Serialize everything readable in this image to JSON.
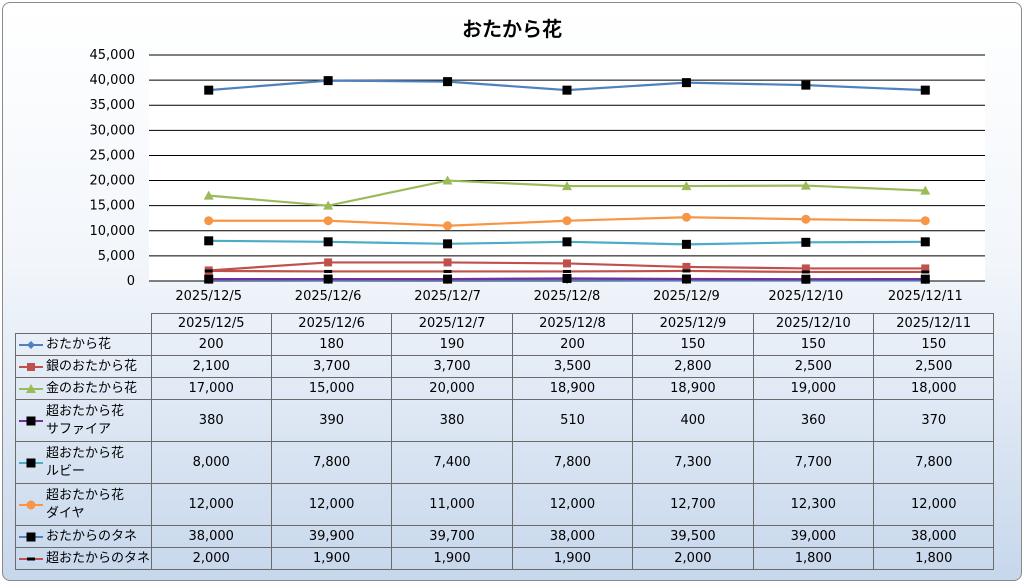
{
  "chart_data": {
    "type": "line",
    "title": "おたから花",
    "categories": [
      "2025/12/5",
      "2025/12/6",
      "2025/12/7",
      "2025/12/8",
      "2025/12/9",
      "2025/12/10",
      "2025/12/11"
    ],
    "ylim": [
      0,
      45000
    ],
    "yticks": [
      "0",
      "5,000",
      "10,000",
      "15,000",
      "20,000",
      "25,000",
      "30,000",
      "35,000",
      "40,000",
      "45,000"
    ],
    "grid": true,
    "legend": "data table",
    "series": [
      {
        "name": "おたから花",
        "label_lines": [
          "おたから花"
        ],
        "color": "#4f81bd",
        "marker": "diamond",
        "values": [
          200,
          180,
          190,
          200,
          150,
          150,
          150
        ],
        "display": [
          "200",
          "180",
          "190",
          "200",
          "150",
          "150",
          "150"
        ]
      },
      {
        "name": "銀のおたから花",
        "label_lines": [
          "銀のおたから花"
        ],
        "color": "#c0504d",
        "marker": "square",
        "values": [
          2100,
          3700,
          3700,
          3500,
          2800,
          2500,
          2500
        ],
        "display": [
          "2,100",
          "3,700",
          "3,700",
          "3,500",
          "2,800",
          "2,500",
          "2,500"
        ]
      },
      {
        "name": "金のおたから花",
        "label_lines": [
          "金のおたから花"
        ],
        "color": "#9bbb59",
        "marker": "triangle",
        "values": [
          17000,
          15000,
          20000,
          18900,
          18900,
          19000,
          18000
        ],
        "display": [
          "17,000",
          "15,000",
          "20,000",
          "18,900",
          "18,900",
          "19,000",
          "18,000"
        ]
      },
      {
        "name": "超おたから花 サファイア",
        "label_lines": [
          "超おたから花",
          "サファイア"
        ],
        "color": "#7030a0",
        "marker": "square-black",
        "values": [
          380,
          390,
          380,
          510,
          400,
          360,
          370
        ],
        "display": [
          "380",
          "390",
          "380",
          "510",
          "400",
          "360",
          "370"
        ]
      },
      {
        "name": "超おたから花 ルビー",
        "label_lines": [
          "超おたから花",
          "ルビー"
        ],
        "color": "#4bacc6",
        "marker": "square-black",
        "values": [
          8000,
          7800,
          7400,
          7800,
          7300,
          7700,
          7800
        ],
        "display": [
          "8,000",
          "7,800",
          "7,400",
          "7,800",
          "7,300",
          "7,700",
          "7,800"
        ]
      },
      {
        "name": "超おたから花 ダイヤ",
        "label_lines": [
          "超おたから花",
          "ダイヤ"
        ],
        "color": "#f79646",
        "marker": "circle",
        "values": [
          12000,
          12000,
          11000,
          12000,
          12700,
          12300,
          12000
        ],
        "display": [
          "12,000",
          "12,000",
          "11,000",
          "12,000",
          "12,700",
          "12,300",
          "12,000"
        ]
      },
      {
        "name": "おたからのタネ",
        "label_lines": [
          "おたからのタネ"
        ],
        "color": "#4f81bd",
        "marker": "square-black",
        "values": [
          38000,
          39900,
          39700,
          38000,
          39500,
          39000,
          38000
        ],
        "display": [
          "38,000",
          "39,900",
          "39,700",
          "38,000",
          "39,500",
          "39,000",
          "38,000"
        ]
      },
      {
        "name": "超おたからのタネ",
        "label_lines": [
          "超おたからのタネ"
        ],
        "color": "#c0504d",
        "marker": "dash-black",
        "values": [
          2000,
          1900,
          1900,
          1900,
          2000,
          1800,
          1800
        ],
        "display": [
          "2,000",
          "1,900",
          "1,900",
          "1,900",
          "2,000",
          "1,800",
          "1,800"
        ]
      }
    ]
  }
}
